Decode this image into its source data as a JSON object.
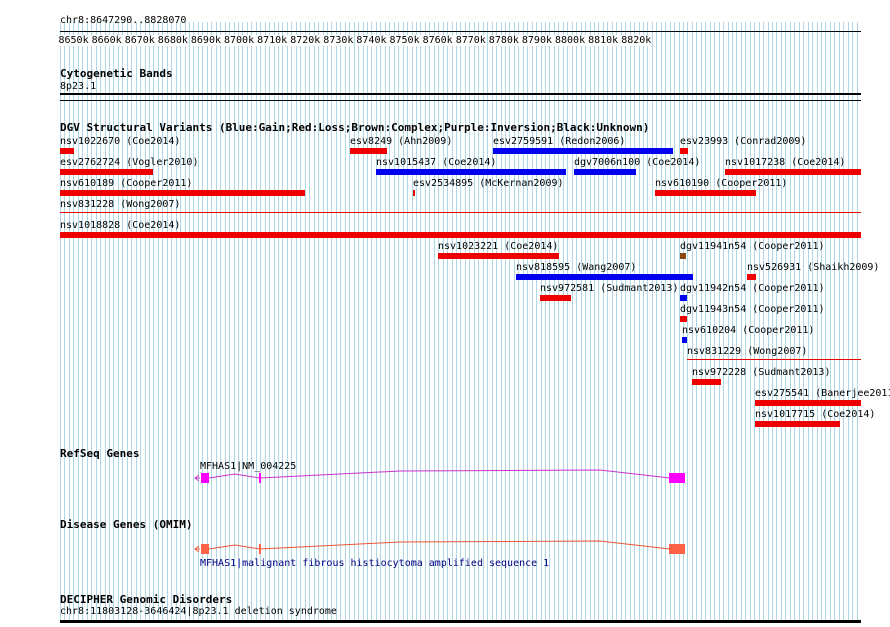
{
  "colors": {
    "gain": "#0000ee",
    "loss": "#ee0000",
    "complex": "#8b4513",
    "refseq": "#ff00ff",
    "refseq_line": "#cc33cc",
    "omim": "#ff6347",
    "omim_line": "#ee5533",
    "grid": "#add8e6",
    "omim_text": "#000080"
  },
  "ruler": {
    "coords": "chr8:8647290..8828070",
    "ticks": [
      "8650k",
      "8660k",
      "8670k",
      "8680k",
      "8690k",
      "8700k",
      "8710k",
      "8720k",
      "8730k",
      "8740k",
      "8750k",
      "8760k",
      "8770k",
      "8780k",
      "8790k",
      "8800k",
      "8810k",
      "8820k"
    ]
  },
  "tracks": {
    "cytoband": {
      "title": "Cytogenetic Bands",
      "band": "8p23.1"
    },
    "dgv": {
      "title": "DGV Structural Variants (Blue:Gain;Red:Loss;Brown:Complex;Purple:Inversion;Black:Unknown)",
      "features": [
        {
          "label": "nsv1022670 (Coe2014)",
          "type": "loss"
        },
        {
          "label": "esv8249 (Ahn2009)",
          "type": "loss"
        },
        {
          "label": "esv2759591 (Redon2006)",
          "type": "gain"
        },
        {
          "label": "esv23993 (Conrad2009)",
          "type": "loss"
        },
        {
          "label": "esv2762724 (Vogler2010)",
          "type": "loss"
        },
        {
          "label": "nsv1015437 (Coe2014)",
          "type": "gain"
        },
        {
          "label": "dgv7006n100 (Coe2014)",
          "type": "gain"
        },
        {
          "label": "nsv1017238 (Coe2014)",
          "type": "loss"
        },
        {
          "label": "nsv610189 (Cooper2011)",
          "type": "loss"
        },
        {
          "label": "esv2534895 (McKernan2009)",
          "type": "loss"
        },
        {
          "label": "nsv610190 (Cooper2011)",
          "type": "loss"
        },
        {
          "label": "nsv831228 (Wong2007)",
          "type": "loss"
        },
        {
          "label": "nsv1018828 (Coe2014)",
          "type": "loss"
        },
        {
          "label": "nsv1023221 (Coe2014)",
          "type": "loss"
        },
        {
          "label": "dgv11941n54 (Cooper2011)",
          "type": "complex"
        },
        {
          "label": "nsv818595 (Wang2007)",
          "type": "gain"
        },
        {
          "label": "nsv526931 (Shaikh2009)",
          "type": "loss"
        },
        {
          "label": "nsv972581 (Sudmant2013)",
          "type": "loss"
        },
        {
          "label": "dgv11942n54 (Cooper2011)",
          "type": "gain"
        },
        {
          "label": "dgv11943n54 (Cooper2011)",
          "type": "loss"
        },
        {
          "label": "nsv610204 (Cooper2011)",
          "type": "gain"
        },
        {
          "label": "nsv831229 (Wong2007)",
          "type": "loss"
        },
        {
          "label": "nsv972228 (Sudmant2013)",
          "type": "loss"
        },
        {
          "label": "esv275541 (Banerjee2011",
          "type": "loss"
        },
        {
          "label": "nsv1017715 (Coe2014)",
          "type": "loss"
        }
      ]
    },
    "refseq": {
      "title": "RefSeq Genes",
      "gene_label": "MFHAS1|NM_004225"
    },
    "omim": {
      "title": "Disease Genes (OMIM)",
      "gene_label": "MFHAS1|malignant fibrous histiocytoma amplified sequence 1"
    },
    "decipher": {
      "title": "DECIPHER Genomic Disorders",
      "label": "chr8:11803128-3646424|8p23.1 deletion syndrome"
    }
  }
}
